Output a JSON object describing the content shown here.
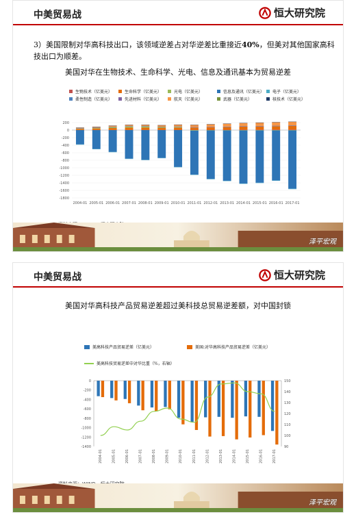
{
  "header": {
    "title": "中美贸易战",
    "logo_text": "恒大研究院"
  },
  "slide1": {
    "paragraph_lead": "3）美国限制对华高科技出口，该领域逆差占对华逆差比重接近",
    "paragraph_bold": "40%",
    "paragraph_tail": "，但美对其他国家高科技出口为顺差。",
    "chart_title": "美国对华在生物技术、生命科学、光电、信息及通讯基本为贸易逆差",
    "source": "资料来源：WIND，恒大研究院"
  },
  "slide2": {
    "chart_title": "美国对华高科技产品贸易逆差超过美科技总贸易逆差额，对中国封锁",
    "source": "资料来源：WIND，恒大研究院"
  },
  "watermark": "泽平宏观",
  "chart_data": [
    {
      "type": "bar",
      "stacked": true,
      "categories": [
        "2004-01",
        "2005-01",
        "2006-01",
        "2007-01",
        "2008-01",
        "2009-01",
        "2010-01",
        "2011-01",
        "2012-01",
        "2013-01",
        "2014-01",
        "2015-01",
        "2016-01",
        "2017-01"
      ],
      "ylim": [
        -1800,
        200
      ],
      "yticks": [
        200,
        0,
        -200,
        -400,
        -600,
        -800,
        -1000,
        -1200,
        -1400,
        -1600,
        -1800
      ],
      "series": [
        {
          "name": "生物技术（亿美元）",
          "color": "#c0504d",
          "values": [
            2,
            3,
            4,
            5,
            6,
            6,
            7,
            8,
            9,
            10,
            11,
            12,
            13,
            14
          ]
        },
        {
          "name": "生命科学（亿美元）",
          "color": "#e46c0a",
          "values": [
            30,
            40,
            50,
            60,
            60,
            55,
            60,
            60,
            65,
            70,
            80,
            85,
            90,
            95
          ]
        },
        {
          "name": "光电（亿美元）",
          "color": "#9bbb59",
          "values": [
            12,
            18,
            25,
            30,
            30,
            22,
            18,
            -12,
            -8,
            -8,
            -8,
            -8,
            -8,
            -8
          ]
        },
        {
          "name": "信息及通讯（亿美元）",
          "color": "#2e75b6",
          "values": [
            -380,
            -500,
            -580,
            -760,
            -790,
            -740,
            -980,
            -1170,
            -1290,
            -1340,
            -1410,
            -1390,
            -1330,
            -1550
          ]
        },
        {
          "name": "电子（亿美元）",
          "color": "#4bacc6",
          "values": [
            -3,
            -4,
            -5,
            -5,
            -6,
            -5,
            -6,
            -7,
            -8,
            -8,
            -9,
            -9,
            -9,
            -10
          ]
        },
        {
          "name": "柔性制造（亿美元）",
          "color": "#4f81bd",
          "values": [
            5,
            6,
            7,
            8,
            8,
            6,
            8,
            9,
            9,
            10,
            10,
            10,
            10,
            11
          ]
        },
        {
          "name": "先进材料（亿美元）",
          "color": "#8064a2",
          "values": [
            2,
            2,
            3,
            3,
            3,
            2,
            3,
            3,
            3,
            3,
            3,
            3,
            3,
            3
          ]
        },
        {
          "name": "航天（亿美元）",
          "color": "#f79646",
          "values": [
            15,
            20,
            30,
            35,
            35,
            40,
            50,
            60,
            70,
            80,
            85,
            90,
            95,
            100
          ]
        },
        {
          "name": "武器（亿美元）",
          "color": "#77933c",
          "values": [
            0,
            0,
            0,
            0,
            0,
            0,
            0,
            0,
            0,
            0,
            0,
            0,
            0,
            0
          ]
        },
        {
          "name": "核技术（亿美元）",
          "color": "#1f3864",
          "values": [
            1,
            1,
            1,
            1,
            1,
            1,
            1,
            1,
            1,
            1,
            1,
            1,
            1,
            1
          ]
        }
      ]
    },
    {
      "type": "bar",
      "categories": [
        "2004-01",
        "2005-01",
        "2006-01",
        "2007-01",
        "2008-01",
        "2009-01",
        "2010-01",
        "2011-01",
        "2012-01",
        "2013-01",
        "2014-01",
        "2015-01",
        "2016-01",
        "2017-01"
      ],
      "ylim": [
        -1400,
        0
      ],
      "yticks": [
        0,
        -200,
        -400,
        -600,
        -800,
        -1000,
        -1200,
        -1400
      ],
      "y2lim": [
        90,
        150
      ],
      "y2ticks": [
        150,
        140,
        130,
        120,
        110,
        100,
        90
      ],
      "series": [
        {
          "name": "美高科技产品贸易逆差（亿美元）",
          "color": "#2e75b6",
          "type": "bar",
          "values": [
            -330,
            -370,
            -390,
            -530,
            -570,
            -560,
            -790,
            -880,
            -780,
            -770,
            -790,
            -760,
            -770,
            -1070
          ]
        },
        {
          "name": "美国:对华高科技产品贸易逆差（亿美元）",
          "color": "#e46c0a",
          "type": "bar",
          "values": [
            -350,
            -420,
            -480,
            -630,
            -650,
            -610,
            -930,
            -1050,
            -1190,
            -1180,
            -1250,
            -1210,
            -1160,
            -1360
          ]
        },
        {
          "name": "美高科技贸易逆差中对华比重（%，右轴）",
          "color": "#92d050",
          "type": "line",
          "axis": "right",
          "values": [
            100,
            108,
            105,
            113,
            122,
            125,
            115,
            112,
            135,
            147,
            148,
            140,
            138,
            122
          ]
        }
      ]
    }
  ]
}
